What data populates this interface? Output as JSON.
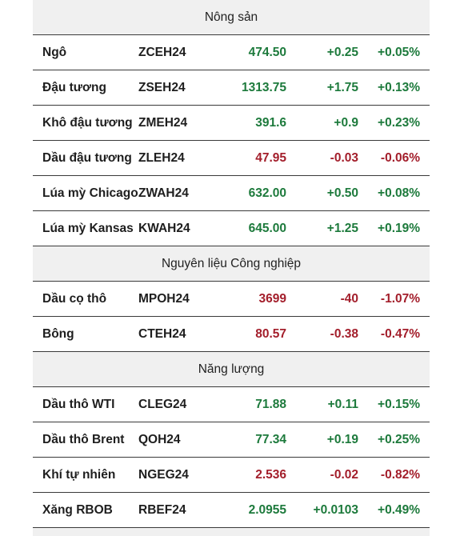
{
  "sections": [
    {
      "title": "Nông sản",
      "rows": [
        {
          "name": "Ngô",
          "code": "ZCEH24",
          "price": "474.50",
          "change": "+0.25",
          "pct": "+0.05%",
          "trend": "up"
        },
        {
          "name": "Đậu tương",
          "code": "ZSEH24",
          "price": "1313.75",
          "change": "+1.75",
          "pct": "+0.13%",
          "trend": "up"
        },
        {
          "name": "Khô đậu tương",
          "code": "ZMEH24",
          "price": "391.6",
          "change": "+0.9",
          "pct": "+0.23%",
          "trend": "up"
        },
        {
          "name": "Dầu đậu tương",
          "code": "ZLEH24",
          "price": "47.95",
          "change": "-0.03",
          "pct": "-0.06%",
          "trend": "down"
        },
        {
          "name": "Lúa mỳ Chicago",
          "code": "ZWAH24",
          "price": "632.00",
          "change": "+0.50",
          "pct": "+0.08%",
          "trend": "up"
        },
        {
          "name": "Lúa mỳ Kansas",
          "code": "KWAH24",
          "price": "645.00",
          "change": "+1.25",
          "pct": "+0.19%",
          "trend": "up"
        }
      ]
    },
    {
      "title": "Nguyên liệu Công nghiệp",
      "rows": [
        {
          "name": "Dầu cọ thô",
          "code": "MPOH24",
          "price": "3699",
          "change": "-40",
          "pct": "-1.07%",
          "trend": "down"
        },
        {
          "name": "Bông",
          "code": "CTEH24",
          "price": "80.57",
          "change": "-0.38",
          "pct": "-0.47%",
          "trend": "down"
        }
      ]
    },
    {
      "title": "Năng lượng",
      "rows": [
        {
          "name": "Dầu thô WTI",
          "code": "CLEG24",
          "price": "71.88",
          "change": "+0.11",
          "pct": "+0.15%",
          "trend": "up"
        },
        {
          "name": "Dầu thô Brent",
          "code": "QOH24",
          "price": "77.34",
          "change": "+0.19",
          "pct": "+0.25%",
          "trend": "up"
        },
        {
          "name": "Khí tự nhiên",
          "code": "NGEG24",
          "price": "2.536",
          "change": "-0.02",
          "pct": "-0.82%",
          "trend": "down"
        },
        {
          "name": "Xăng RBOB",
          "code": "RBEF24",
          "price": "2.0955",
          "change": "+0.0103",
          "pct": "+0.49%",
          "trend": "up"
        }
      ]
    }
  ],
  "colors": {
    "up": "#1d7a3c",
    "down": "#a31e2b",
    "header_bg": "#f0f0f0",
    "text": "#1e1e1e"
  }
}
